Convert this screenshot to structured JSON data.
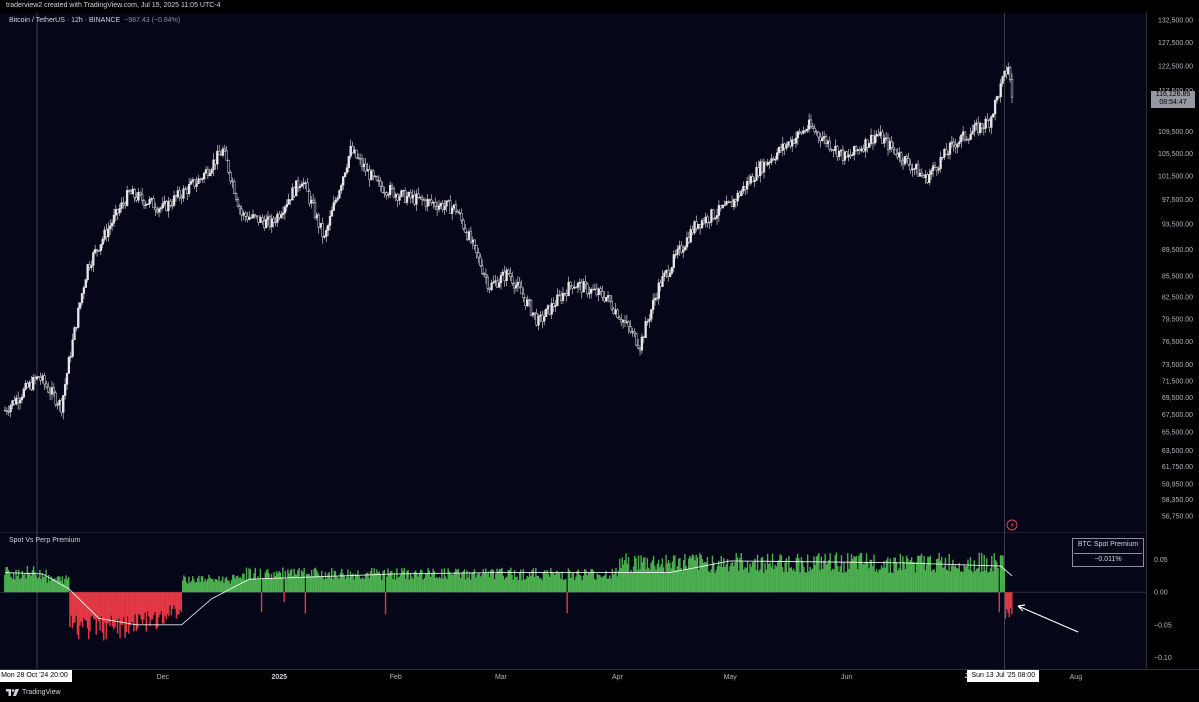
{
  "header": {
    "created_text": "traderview2 created with TradingView.com, Jul 15, 2025 11:05 UTC-4"
  },
  "legend": {
    "symbol": "Bitcoin / TetherUS · 12h · BINANCE",
    "change": "−987.43 (−0.84%)"
  },
  "price_badge": {
    "price": "116,126.85",
    "countdown": "08:54:47"
  },
  "indicator": {
    "title": "Spot Vs Perp Premium",
    "box_title": "BTC Spot Premium",
    "box_value": "−0.011%"
  },
  "crosshair": {
    "left_label": "Mon 28 Oct '24   20:00",
    "right_label": "Sun 13 Jul '25   08:00",
    "right_behind": "Ju"
  },
  "footer": {
    "brand": "TradingView"
  },
  "colors": {
    "background": "#060619",
    "bull_bar": "#4caf50",
    "bear_bar": "#e53945",
    "candle": "#e6e6e6",
    "moving_average": "#ffffff",
    "marker": "#e0455c",
    "annotation_arrow": "#ffffff"
  },
  "icons": {
    "marker": "lightning-marker-icon",
    "brand": "tradingview-logo-icon",
    "annotation": "annotation-arrow-icon"
  },
  "chart_data": [
    {
      "type": "candlestick",
      "title": "Bitcoin / TetherUS · 12h · BINANCE",
      "x_ticks": [
        "Dec",
        "2025",
        "Feb",
        "Mar",
        "Apr",
        "May",
        "Jun",
        "Ju",
        "Aug"
      ],
      "y_ticks": [
        "132,500.00",
        "127,500.00",
        "122,500.00",
        "117,500.00",
        "115,000.00",
        "109,500.00",
        "105,500.00",
        "101,500.00",
        "97,500.00",
        "93,500.00",
        "89,500.00",
        "85,500.00",
        "82,500.00",
        "79,500.00",
        "76,500.00",
        "73,500.00",
        "71,500.00",
        "69,500.00",
        "67,500.00",
        "65,500.00",
        "63,500.00",
        "61,750.00",
        "59,950.00",
        "58,350.00",
        "56,750.00"
      ],
      "ylim": [
        56750,
        132500
      ],
      "y_scale": "log",
      "close_series": [
        {
          "date": "2024-10-20",
          "close": 68000
        },
        {
          "date": "2024-10-29",
          "close": 72000
        },
        {
          "date": "2024-11-04",
          "close": 68500
        },
        {
          "date": "2024-11-11",
          "close": 87000
        },
        {
          "date": "2024-11-22",
          "close": 98500
        },
        {
          "date": "2024-12-01",
          "close": 96000
        },
        {
          "date": "2024-12-05",
          "close": 98000
        },
        {
          "date": "2024-12-11",
          "close": 101000
        },
        {
          "date": "2024-12-17",
          "close": 106000
        },
        {
          "date": "2024-12-22",
          "close": 95000
        },
        {
          "date": "2024-12-30",
          "close": 93500
        },
        {
          "date": "2025-01-07",
          "close": 101000
        },
        {
          "date": "2025-01-13",
          "close": 91000
        },
        {
          "date": "2025-01-20",
          "close": 106000
        },
        {
          "date": "2025-01-27",
          "close": 100000
        },
        {
          "date": "2025-02-03",
          "close": 98000
        },
        {
          "date": "2025-02-17",
          "close": 96000
        },
        {
          "date": "2025-02-26",
          "close": 84000
        },
        {
          "date": "2025-03-03",
          "close": 86000
        },
        {
          "date": "2025-03-11",
          "close": 79000
        },
        {
          "date": "2025-03-20",
          "close": 84500
        },
        {
          "date": "2025-03-29",
          "close": 82500
        },
        {
          "date": "2025-04-07",
          "close": 76000
        },
        {
          "date": "2025-04-12",
          "close": 84000
        },
        {
          "date": "2025-04-22",
          "close": 93500
        },
        {
          "date": "2025-05-01",
          "close": 96500
        },
        {
          "date": "2025-05-09",
          "close": 103000
        },
        {
          "date": "2025-05-22",
          "close": 110500
        },
        {
          "date": "2025-06-01",
          "close": 104500
        },
        {
          "date": "2025-06-09",
          "close": 109000
        },
        {
          "date": "2025-06-17",
          "close": 104000
        },
        {
          "date": "2025-06-22",
          "close": 101000
        },
        {
          "date": "2025-06-30",
          "close": 107500
        },
        {
          "date": "2025-07-09",
          "close": 111500
        },
        {
          "date": "2025-07-14",
          "close": 122500
        },
        {
          "date": "2025-07-15",
          "close": 116126.85
        }
      ],
      "last_price": 116126.85
    },
    {
      "type": "bar",
      "title": "Spot Vs Perp Premium",
      "y_ticks": [
        "0.05",
        "0.00",
        "−0.05",
        "−0.10"
      ],
      "ylim": [
        -0.11,
        0.08
      ],
      "segments": [
        {
          "from": "2024-10-20",
          "to": "2024-10-30",
          "premium": 0.03
        },
        {
          "from": "2024-10-31",
          "to": "2024-11-05",
          "premium": 0.02
        },
        {
          "from": "2024-11-06",
          "to": "2024-11-22",
          "premium": -0.055
        },
        {
          "from": "2024-11-23",
          "to": "2024-12-01",
          "premium": -0.045
        },
        {
          "from": "2024-12-02",
          "to": "2024-12-05",
          "premium": -0.03
        },
        {
          "from": "2024-12-06",
          "to": "2024-12-20",
          "premium": 0.02
        },
        {
          "from": "2024-12-21",
          "to": "2025-03-31",
          "premium": 0.028
        },
        {
          "from": "2025-04-01",
          "to": "2025-07-12",
          "premium": 0.045
        },
        {
          "from": "2025-07-13",
          "to": "2025-07-15",
          "premium": -0.03
        }
      ],
      "moving_average": [
        {
          "date": "2024-10-20",
          "value": 0.03
        },
        {
          "date": "2024-10-30",
          "value": 0.028
        },
        {
          "date": "2024-11-06",
          "value": 0.005
        },
        {
          "date": "2024-11-14",
          "value": -0.04
        },
        {
          "date": "2024-11-24",
          "value": -0.05
        },
        {
          "date": "2024-12-06",
          "value": -0.05
        },
        {
          "date": "2024-12-14",
          "value": -0.01
        },
        {
          "date": "2024-12-24",
          "value": 0.02
        },
        {
          "date": "2025-02-01",
          "value": 0.028
        },
        {
          "date": "2025-03-01",
          "value": 0.03
        },
        {
          "date": "2025-04-15",
          "value": 0.03
        },
        {
          "date": "2025-05-01",
          "value": 0.048
        },
        {
          "date": "2025-06-15",
          "value": 0.045
        },
        {
          "date": "2025-07-12",
          "value": 0.04
        },
        {
          "date": "2025-07-15",
          "value": 0.025
        }
      ],
      "current_value": -0.011
    }
  ]
}
